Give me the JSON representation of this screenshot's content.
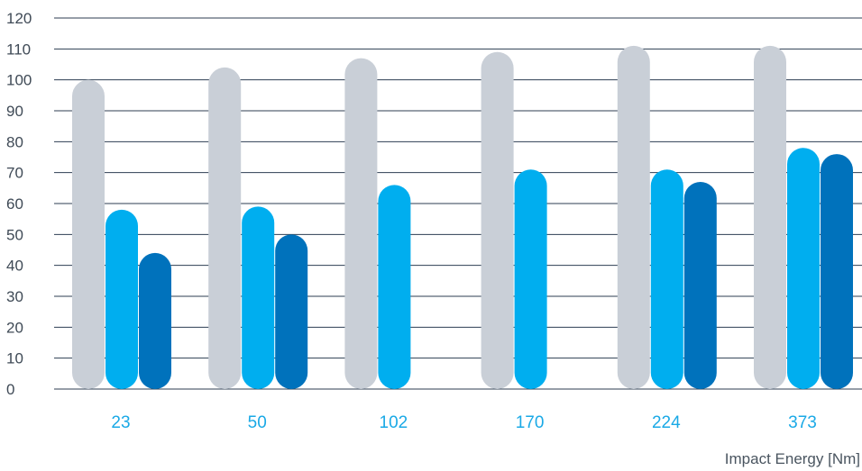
{
  "chart_data": {
    "type": "bar",
    "categories": [
      "23",
      "50",
      "102",
      "170",
      "224",
      "373"
    ],
    "series": [
      {
        "values": [
          100,
          104,
          107,
          109,
          111,
          111
        ]
      },
      {
        "values": [
          58,
          59,
          66,
          71,
          71,
          78
        ]
      },
      {
        "values": [
          44,
          50,
          null,
          null,
          67,
          76
        ]
      }
    ],
    "colors": [
      "#c9cfd7",
      "#00aeef",
      "#0072bc"
    ],
    "xlabel": "Impact Energy [Nm]",
    "ylabel": "",
    "ylim": [
      0,
      120
    ],
    "yticks": [
      0,
      10,
      20,
      30,
      40,
      50,
      60,
      70,
      80,
      90,
      100,
      110,
      120
    ],
    "grid": true,
    "legend": "none"
  }
}
